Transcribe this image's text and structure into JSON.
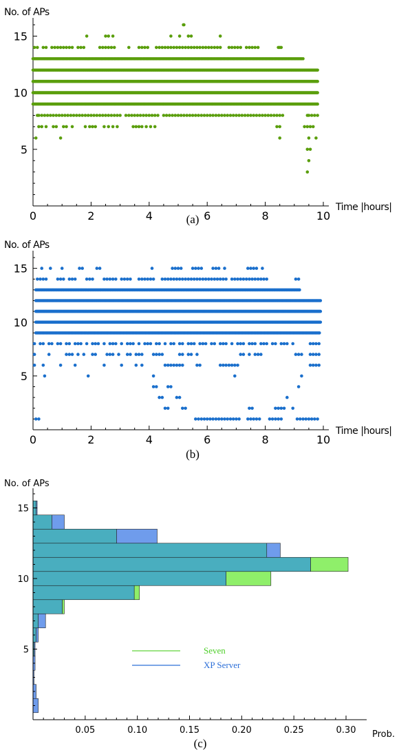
{
  "chart_data": [
    {
      "type": "scatter",
      "ylabel": "No. of APs",
      "xlabel": "Time |hours|",
      "caption": "(a)",
      "xlim": [
        0,
        10
      ],
      "ylim": [
        0,
        16
      ],
      "xticks": [
        "0",
        "2",
        "4",
        "6",
        "8",
        "10"
      ],
      "yticks": [
        "5",
        "10",
        "15"
      ],
      "color": "#5a9e0c",
      "point_runs": [
        {
          "y": 11,
          "from": 0.0,
          "to": 9.8,
          "step": 0.025
        },
        {
          "y": 10,
          "from": 0.0,
          "to": 9.8,
          "step": 0.025
        },
        {
          "y": 12,
          "from": 0.0,
          "to": 9.8,
          "step": 0.035
        },
        {
          "y": 9,
          "from": 0.0,
          "to": 9.8,
          "step": 0.04
        },
        {
          "y": 13,
          "from": 0.0,
          "to": 9.3,
          "step": 0.05
        }
      ],
      "point_clusters": [
        {
          "y": 16,
          "x": [
            5.18,
            5.2
          ]
        },
        {
          "y": 15,
          "x": [
            1.85,
            2.5,
            2.6,
            2.75,
            4.75,
            5.05,
            5.35,
            5.45,
            6.45
          ]
        },
        {
          "y": 14,
          "x": [
            0.05,
            0.15,
            0.35,
            0.45,
            0.65,
            0.75,
            0.85,
            0.95,
            1.05,
            1.15,
            1.25,
            1.35,
            1.55,
            1.65,
            1.75,
            2.3,
            2.4,
            2.5,
            2.6,
            2.7,
            2.8,
            3.3,
            3.65,
            3.75,
            3.85,
            3.95,
            4.25,
            4.35,
            4.45,
            4.55,
            4.65,
            4.75,
            4.85,
            4.95,
            5.05,
            5.15,
            5.25,
            5.35,
            5.45,
            5.55,
            5.65,
            5.75,
            5.85,
            5.95,
            6.05,
            6.15,
            6.25,
            6.35,
            6.45,
            6.75,
            6.85,
            6.95,
            7.05,
            7.15,
            7.35,
            7.45,
            7.55,
            7.65,
            7.75,
            8.45,
            8.5,
            8.55
          ]
        },
        {
          "y": 8,
          "x": [
            0.15,
            0.2,
            0.3,
            0.4,
            0.5,
            0.6,
            0.7,
            0.8,
            0.9,
            1.0,
            1.1,
            1.2,
            1.3,
            1.4,
            1.5,
            1.6,
            1.7,
            1.8,
            1.9,
            2.0,
            2.1,
            2.2,
            2.3,
            2.4,
            2.5,
            2.6,
            2.7,
            2.8,
            2.9,
            3.0,
            3.2,
            3.3,
            3.4,
            3.5,
            3.6,
            3.7,
            3.8,
            3.9,
            4.0,
            4.1,
            4.2,
            4.3,
            4.5,
            4.6,
            4.7,
            4.8,
            4.9,
            5.0,
            5.1,
            5.2,
            5.3,
            5.4,
            5.5,
            5.6,
            5.7,
            5.8,
            5.9,
            6.0,
            6.1,
            6.2,
            6.3,
            6.4,
            6.5,
            6.6,
            6.7,
            6.8,
            6.9,
            7.0,
            7.1,
            7.2,
            7.3,
            7.4,
            7.5,
            7.6,
            7.7,
            7.8,
            7.9,
            8.0,
            8.1,
            8.2,
            8.3,
            8.4,
            8.5,
            8.6,
            9.45,
            9.5,
            9.6,
            9.7,
            9.8
          ]
        },
        {
          "y": 7,
          "x": [
            0.2,
            0.3,
            0.45,
            0.7,
            0.8,
            1.05,
            1.15,
            1.35,
            1.8,
            1.95,
            2.05,
            2.15,
            2.45,
            2.6,
            2.75,
            2.9,
            3.45,
            3.55,
            3.65,
            3.75,
            3.9,
            4.05,
            4.2,
            8.4,
            8.5,
            9.35,
            9.45,
            9.55,
            9.65
          ]
        },
        {
          "y": 6,
          "x": [
            0.1,
            0.95,
            8.5,
            9.5,
            9.75
          ]
        },
        {
          "y": 5,
          "x": [
            9.45,
            9.55
          ]
        },
        {
          "y": 4,
          "x": [
            9.5
          ]
        },
        {
          "y": 3,
          "x": [
            9.45
          ]
        }
      ]
    },
    {
      "type": "scatter",
      "ylabel": "No. of APs",
      "xlabel": "Time |hours|",
      "caption": "(b)",
      "xlim": [
        0,
        10
      ],
      "ylim": [
        0,
        16
      ],
      "xticks": [
        "0",
        "2",
        "4",
        "6",
        "8",
        "10"
      ],
      "yticks": [
        "5",
        "10",
        "15"
      ],
      "color": "#1a6fcc",
      "point_runs": [
        {
          "y": 11,
          "from": 0.1,
          "to": 9.9,
          "step": 0.025
        },
        {
          "y": 10,
          "from": 0.1,
          "to": 9.9,
          "step": 0.025
        },
        {
          "y": 12,
          "from": 0.1,
          "to": 9.9,
          "step": 0.035
        },
        {
          "y": 13,
          "from": 0.1,
          "to": 9.2,
          "step": 0.04
        },
        {
          "y": 9,
          "from": 0.1,
          "to": 9.9,
          "step": 0.045
        }
      ],
      "point_clusters": [
        {
          "y": 15,
          "x": [
            0.3,
            0.6,
            1.0,
            1.6,
            1.7,
            2.2,
            2.3,
            4.1,
            4.8,
            4.9,
            5.0,
            5.1,
            5.5,
            5.6,
            5.7,
            5.8,
            6.2,
            6.3,
            6.4,
            6.6,
            7.4,
            7.5,
            7.6,
            7.7,
            7.9
          ]
        },
        {
          "y": 14,
          "x": [
            0.15,
            0.25,
            0.35,
            0.45,
            0.85,
            0.95,
            1.05,
            1.25,
            1.35,
            1.45,
            1.85,
            1.95,
            2.05,
            2.45,
            2.55,
            2.65,
            2.75,
            2.85,
            3.05,
            3.15,
            3.25,
            3.35,
            3.65,
            3.75,
            3.85,
            3.95,
            4.05,
            4.15,
            4.45,
            4.55,
            4.65,
            4.75,
            4.85,
            4.95,
            5.05,
            5.15,
            5.25,
            5.35,
            5.45,
            5.55,
            5.65,
            5.75,
            5.85,
            5.95,
            6.05,
            6.15,
            6.25,
            6.35,
            6.45,
            6.55,
            6.65,
            6.85,
            6.95,
            7.05,
            7.15,
            7.25,
            7.35,
            7.45,
            7.55,
            7.65,
            7.75,
            7.85,
            7.95,
            8.05,
            9.05,
            9.15
          ]
        },
        {
          "y": 8,
          "x": [
            0.05,
            0.25,
            0.35,
            0.55,
            0.65,
            0.85,
            0.95,
            1.15,
            1.25,
            1.45,
            1.55,
            1.65,
            1.85,
            2.05,
            2.15,
            2.25,
            2.45,
            2.65,
            2.75,
            2.85,
            3.05,
            3.25,
            3.35,
            3.45,
            3.65,
            3.85,
            3.95,
            4.05,
            4.25,
            4.35,
            4.55,
            4.75,
            4.85,
            5.05,
            5.15,
            5.35,
            5.45,
            5.55,
            5.75,
            5.85,
            5.95,
            6.15,
            6.25,
            6.45,
            6.55,
            6.65,
            6.85,
            7.05,
            7.15,
            7.25,
            7.45,
            7.55,
            7.65,
            7.85,
            7.95,
            8.05,
            8.25,
            8.35,
            8.55,
            8.65,
            8.75,
            8.95,
            9.55,
            9.65,
            9.75,
            9.85
          ]
        },
        {
          "y": 7,
          "x": [
            0.05,
            0.55,
            1.15,
            1.25,
            1.35,
            1.55,
            1.75,
            2.05,
            2.15,
            2.55,
            2.65,
            2.75,
            2.95,
            3.25,
            3.35,
            3.55,
            3.65,
            3.75,
            4.15,
            4.25,
            4.35,
            4.45,
            5.05,
            5.15,
            5.35,
            5.45,
            5.65,
            7.15,
            7.25,
            7.45,
            7.65,
            7.75,
            7.85,
            9.05,
            9.15,
            9.25,
            9.55,
            9.65,
            9.75,
            9.85
          ]
        },
        {
          "y": 6,
          "x": [
            0.05,
            0.35,
            0.95,
            1.45,
            2.45,
            3.05,
            3.55,
            3.75,
            4.55,
            4.65,
            4.75,
            4.85,
            4.95,
            5.05,
            5.15,
            5.65,
            5.75,
            6.45,
            6.55,
            6.65,
            6.75,
            6.85,
            6.95,
            7.05,
            9.55,
            9.65,
            9.75,
            9.85
          ]
        },
        {
          "y": 5,
          "x": [
            0.4,
            1.9,
            4.15,
            6.95,
            9.25
          ]
        },
        {
          "y": 4,
          "x": [
            4.15,
            4.25,
            4.65,
            4.75,
            9.15
          ]
        },
        {
          "y": 3,
          "x": [
            4.35,
            4.45,
            4.95,
            5.05,
            8.75
          ]
        },
        {
          "y": 2,
          "x": [
            4.55,
            4.65,
            5.15,
            5.25,
            7.45,
            7.55,
            8.35,
            8.45,
            8.55,
            8.65,
            8.95
          ]
        },
        {
          "y": 1,
          "x": [
            0.1,
            0.2,
            5.6,
            5.7,
            5.8,
            5.9,
            6.0,
            6.1,
            6.2,
            6.3,
            6.4,
            6.5,
            6.6,
            6.7,
            6.8,
            6.9,
            7.0,
            7.1,
            7.4,
            7.5,
            7.6,
            7.7,
            7.8,
            8.15,
            8.25,
            8.35,
            8.45,
            8.55,
            9.1,
            9.2,
            9.3,
            9.4,
            9.5,
            9.6,
            9.7,
            9.8
          ]
        }
      ]
    },
    {
      "type": "bar",
      "orientation": "horizontal",
      "ylabel": "No. of APs",
      "xlabel": "Prob.",
      "caption": "(c)",
      "xlim": [
        0,
        0.3
      ],
      "ylim": [
        0,
        16
      ],
      "xticks": [
        "0.05",
        "0.10",
        "0.15",
        "0.20",
        "0.25",
        "0.30"
      ],
      "yticks": [
        "5",
        "10",
        "15"
      ],
      "categories": [
        1,
        2,
        3,
        4,
        5,
        6,
        7,
        8,
        9,
        10,
        11,
        12,
        13,
        14,
        15,
        16
      ],
      "series": [
        {
          "name": "Seven",
          "color": "#8fef6a",
          "values": [
            0.0,
            0.0,
            0.0,
            0.0,
            0.001,
            0.003,
            0.005,
            0.03,
            0.102,
            0.228,
            0.302,
            0.224,
            0.08,
            0.018,
            0.003,
            0.0
          ]
        },
        {
          "name": "XP Server",
          "color": "#6f9cec",
          "values": [
            0.005,
            0.003,
            0.001,
            0.002,
            0.002,
            0.005,
            0.012,
            0.028,
            0.097,
            0.185,
            0.266,
            0.237,
            0.119,
            0.03,
            0.004,
            0.0
          ]
        }
      ],
      "legend_position": "center"
    }
  ]
}
